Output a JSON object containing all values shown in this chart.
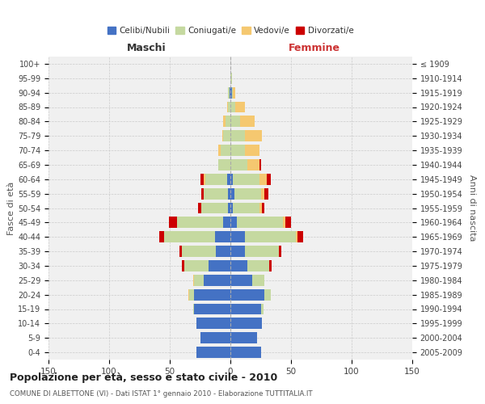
{
  "age_groups": [
    "0-4",
    "5-9",
    "10-14",
    "15-19",
    "20-24",
    "25-29",
    "30-34",
    "35-39",
    "40-44",
    "45-49",
    "50-54",
    "55-59",
    "60-64",
    "65-69",
    "70-74",
    "75-79",
    "80-84",
    "85-89",
    "90-94",
    "95-99",
    "100+"
  ],
  "birth_years": [
    "2005-2009",
    "2000-2004",
    "1995-1999",
    "1990-1994",
    "1985-1989",
    "1980-1984",
    "1975-1979",
    "1970-1974",
    "1965-1969",
    "1960-1964",
    "1955-1959",
    "1950-1954",
    "1945-1949",
    "1940-1944",
    "1935-1939",
    "1930-1934",
    "1925-1929",
    "1920-1924",
    "1915-1919",
    "1910-1914",
    "≤ 1909"
  ],
  "male_celibi": [
    28,
    25,
    28,
    30,
    30,
    22,
    18,
    12,
    13,
    6,
    2,
    2,
    3,
    0,
    0,
    0,
    0,
    0,
    1,
    0,
    0
  ],
  "male_coniugati": [
    0,
    0,
    0,
    1,
    4,
    8,
    20,
    28,
    42,
    38,
    22,
    20,
    18,
    10,
    8,
    6,
    4,
    2,
    1,
    0,
    0
  ],
  "male_vedovi": [
    0,
    0,
    0,
    0,
    1,
    1,
    0,
    0,
    0,
    0,
    0,
    0,
    1,
    0,
    2,
    1,
    2,
    1,
    0,
    0,
    0
  ],
  "male_divorziati": [
    0,
    0,
    0,
    0,
    0,
    0,
    2,
    2,
    4,
    7,
    3,
    2,
    3,
    0,
    0,
    0,
    0,
    0,
    0,
    0,
    0
  ],
  "female_celibi": [
    25,
    22,
    26,
    25,
    28,
    18,
    14,
    12,
    12,
    5,
    2,
    3,
    2,
    0,
    0,
    0,
    0,
    0,
    1,
    0,
    0
  ],
  "female_coniugati": [
    0,
    0,
    0,
    2,
    5,
    10,
    18,
    28,
    42,
    38,
    22,
    22,
    22,
    14,
    12,
    12,
    8,
    4,
    1,
    1,
    0
  ],
  "female_vedovi": [
    0,
    0,
    0,
    0,
    0,
    0,
    0,
    0,
    1,
    2,
    2,
    3,
    6,
    10,
    12,
    14,
    12,
    8,
    2,
    0,
    0
  ],
  "female_divorziati": [
    0,
    0,
    0,
    0,
    0,
    0,
    2,
    2,
    5,
    5,
    2,
    3,
    3,
    1,
    0,
    0,
    0,
    0,
    0,
    0,
    0
  ],
  "color_celibi": "#4472c4",
  "color_coniugati": "#c5d9a0",
  "color_vedovi": "#f5c870",
  "color_divorziati": "#cc0000",
  "title": "Popolazione per età, sesso e stato civile - 2010",
  "subtitle": "COMUNE DI ALBETTONE (VI) - Dati ISTAT 1° gennaio 2010 - Elaborazione TUTTITALIA.IT",
  "xlabel_left": "Maschi",
  "xlabel_right": "Femmine",
  "ylabel_left": "Fasce di età",
  "ylabel_right": "Anni di nascita",
  "xlim": 150,
  "bg_color": "#ffffff",
  "plot_bg": "#f0f0f0",
  "grid_color": "#cccccc"
}
